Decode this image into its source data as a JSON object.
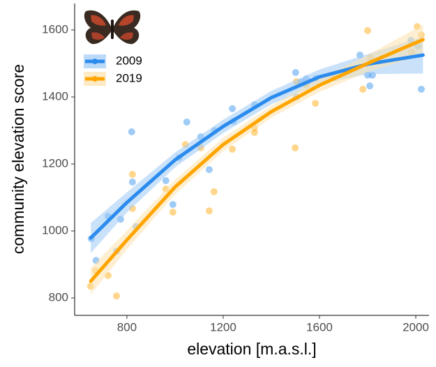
{
  "chart_data": {
    "type": "scatter",
    "x_label": "elevation [m.a.s.l.]",
    "y_label": "community elevation score",
    "xlim": [
      583,
      2055
    ],
    "ylim": [
      748,
      1679
    ],
    "xticks": [
      800,
      1200,
      1600,
      2000
    ],
    "yticks": [
      800,
      1000,
      1200,
      1400,
      1600
    ],
    "fit_x": [
      650,
      800,
      1000,
      1200,
      1400,
      1600,
      1800,
      2030
    ],
    "series": [
      {
        "name": "2009",
        "color": "#2b8cee",
        "band_color": "#9ccaf5",
        "x": [
          652,
          672,
          722,
          757,
          774,
          820,
          823,
          838,
          962,
          991,
          1017,
          1049,
          1107,
          1142,
          1165,
          1238,
          1243,
          1330,
          1501,
          1504,
          1525,
          1545,
          1586,
          1768,
          1800,
          1809,
          1820,
          1980,
          2009,
          2023
        ],
        "values": [
          977,
          912,
          1044,
          940,
          1035,
          1296,
          1146,
          1013,
          1150,
          1079,
          1219,
          1325,
          1281,
          1183,
          1300,
          1365,
          1327,
          1377,
          1473,
          1400,
          1444,
          1454,
          1456,
          1525,
          1465,
          1433,
          1465,
          1569,
          1552,
          1423
        ],
        "fit": [
          979,
          1085,
          1212,
          1312,
          1398,
          1460,
          1498,
          1525
        ],
        "fit_lower": [
          934,
          1055,
          1190,
          1292,
          1378,
          1438,
          1468,
          1470
        ],
        "fit_upper": [
          1024,
          1115,
          1234,
          1332,
          1418,
          1482,
          1528,
          1580
        ]
      },
      {
        "name": "2019",
        "color": "#ffa500",
        "band_color": "#fde2ad",
        "x": [
          649,
          670,
          722,
          757,
          823,
          823,
          962,
          991,
          1043,
          1107,
          1142,
          1162,
          1238,
          1330,
          1330,
          1499,
          1504,
          1545,
          1583,
          1655,
          1780,
          1800,
          1812,
          1983,
          2006,
          2023
        ],
        "values": [
          835,
          881,
          867,
          806,
          1169,
          1067,
          1125,
          1056,
          1258,
          1248,
          1060,
          1117,
          1244,
          1308,
          1294,
          1248,
          1446,
          1435,
          1381,
          1460,
          1423,
          1598,
          1517,
          1533,
          1610,
          1585
        ],
        "fit": [
          850,
          973,
          1131,
          1258,
          1356,
          1435,
          1500,
          1571
        ],
        "fit_lower": [
          810,
          945,
          1109,
          1238,
          1338,
          1415,
          1475,
          1526
        ],
        "fit_upper": [
          890,
          1001,
          1153,
          1278,
          1374,
          1455,
          1525,
          1616
        ]
      }
    ]
  }
}
